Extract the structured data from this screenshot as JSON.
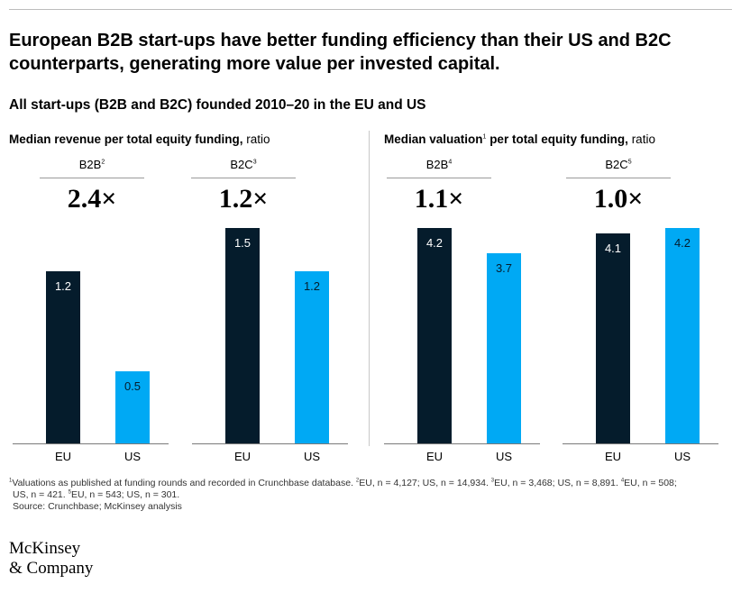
{
  "headline": {
    "line1": "European B2B start-ups have better funding efficiency than their US and B2C",
    "line2": "counterparts, generating more value per invested capital."
  },
  "subhead": "All start-ups (B2B and B2C) founded 2010–20 in the EU and US",
  "colors": {
    "eu": "#051c2c",
    "us": "#00a9f4",
    "eu_label": "#ffffff",
    "us_label": "#051c2c"
  },
  "chart_data": [
    {
      "type": "bar",
      "title_bold": "Median revenue per total equity funding,",
      "title_unit": " ratio",
      "ylim": [
        0,
        1.5
      ],
      "groups": [
        {
          "label": "B2B",
          "sup": "2",
          "ratio": "2.4×",
          "categories": [
            "EU",
            "US"
          ],
          "values": [
            1.2,
            0.5
          ]
        },
        {
          "label": "B2C",
          "sup": "3",
          "ratio": "1.2×",
          "categories": [
            "EU",
            "US"
          ],
          "values": [
            1.5,
            1.2
          ]
        }
      ]
    },
    {
      "type": "bar",
      "title_bold": "Median valuation",
      "title_sup": "1",
      "title_bold2": " per total equity funding,",
      "title_unit": " ratio",
      "ylim": [
        0,
        4.2
      ],
      "groups": [
        {
          "label": "B2B",
          "sup": "4",
          "ratio": "1.1×",
          "categories": [
            "EU",
            "US"
          ],
          "values": [
            4.2,
            3.7
          ]
        },
        {
          "label": "B2C",
          "sup": "5",
          "ratio": "1.0×",
          "categories": [
            "EU",
            "US"
          ],
          "values": [
            4.1,
            4.2
          ]
        }
      ]
    }
  ],
  "footnote": {
    "s1": "1",
    "t1": "Valuations as published at funding rounds and recorded in Crunchbase database. ",
    "s2": "2",
    "t2": "EU, n = 4,127; US, n = 14,934. ",
    "s3": "3",
    "t3": "EU, n = 3,468; US, n = 8,891. ",
    "s4": "4",
    "t4": "EU, n = 508;",
    "t5": "US, n = 421. ",
    "s5": "5",
    "t6": "EU, n = 543; US, n = 301.",
    "source": "Source: Crunchbase; McKinsey analysis"
  },
  "logo": {
    "line1": "McKinsey",
    "line2": "& Company"
  }
}
